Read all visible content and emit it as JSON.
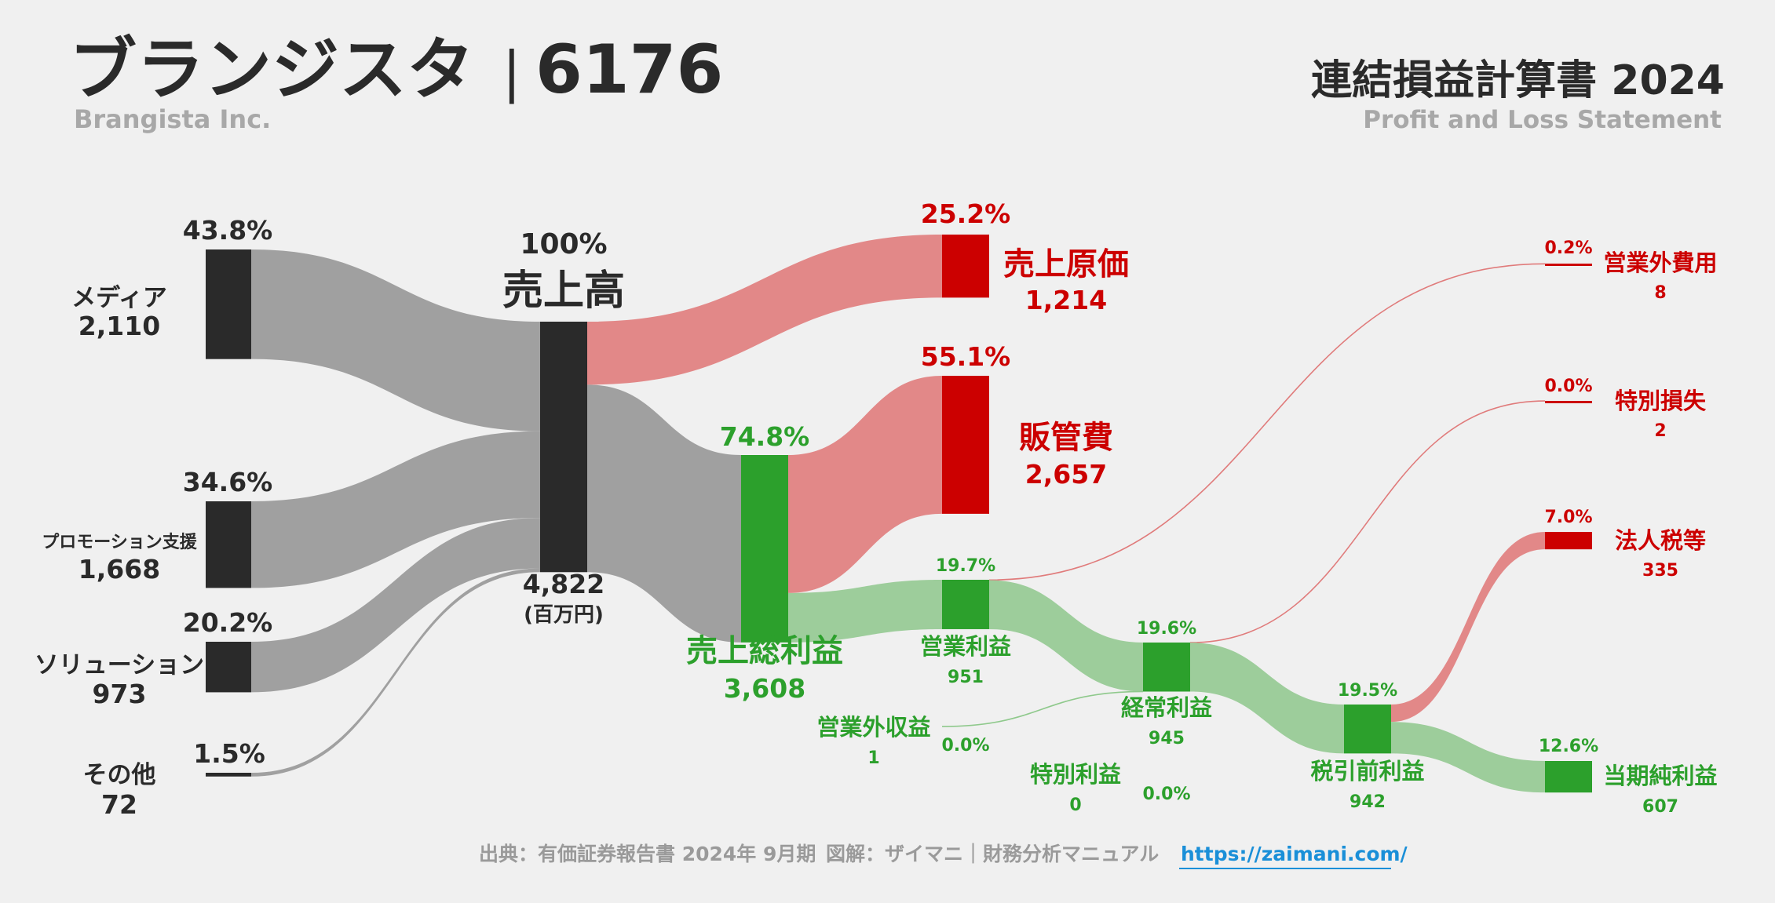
{
  "header": {
    "company": "ブランジスタ",
    "separator": "|",
    "code": "6176",
    "company_en": "Brangista Inc.",
    "statement": "連結損益計算書 2024",
    "statement_en": "Profit and Loss Statement"
  },
  "footer": {
    "source": "出典：有価証券報告書 2024年 9月期",
    "credit": "図解：ザイマニ｜財務分析マニュアル",
    "url": "https://zaimani.com/"
  },
  "colors": {
    "neutral_node": "#2a2a2a",
    "neutral_flow": "#a0a0a0",
    "cost_node": "#cc0000",
    "cost_flow": "#e28888",
    "profit_node": "#2ca02c",
    "profit_flow": "#9dcd9b",
    "background": "#f0f0f0"
  },
  "chart_data": {
    "type": "sankey",
    "unit": "(百万円)",
    "nodes": [
      {
        "id": "media",
        "label": "メディア",
        "value": "2,110",
        "pct": "43.8%",
        "kind": "neutral"
      },
      {
        "id": "promo",
        "label": "プロモーション支援",
        "value": "1,668",
        "pct": "34.6%",
        "kind": "neutral"
      },
      {
        "id": "solution",
        "label": "ソリューション",
        "value": "973",
        "pct": "20.2%",
        "kind": "neutral"
      },
      {
        "id": "other",
        "label": "その他",
        "value": "72",
        "pct": "1.5%",
        "kind": "neutral"
      },
      {
        "id": "revenue",
        "label": "売上高",
        "value": "4,822",
        "pct": "100%",
        "kind": "neutral"
      },
      {
        "id": "cogs",
        "label": "売上原価",
        "value": "1,214",
        "pct": "25.2%",
        "kind": "cost"
      },
      {
        "id": "gross",
        "label": "売上総利益",
        "value": "3,608",
        "pct": "74.8%",
        "kind": "profit"
      },
      {
        "id": "sga",
        "label": "販管費",
        "value": "2,657",
        "pct": "55.1%",
        "kind": "cost"
      },
      {
        "id": "op",
        "label": "営業利益",
        "value": "951",
        "pct": "19.7%",
        "kind": "profit"
      },
      {
        "id": "nonop_inc",
        "label": "営業外収益",
        "value": "1",
        "pct": "0.0%",
        "kind": "profit"
      },
      {
        "id": "nonop_exp",
        "label": "営業外費用",
        "value": "8",
        "pct": "0.2%",
        "kind": "cost"
      },
      {
        "id": "ord",
        "label": "経常利益",
        "value": "945",
        "pct": "19.6%",
        "kind": "profit"
      },
      {
        "id": "ext_gain",
        "label": "特別利益",
        "value": "0",
        "pct": "0.0%",
        "kind": "profit"
      },
      {
        "id": "ext_loss",
        "label": "特別損失",
        "value": "2",
        "pct": "0.0%",
        "kind": "cost"
      },
      {
        "id": "pretax",
        "label": "税引前利益",
        "value": "942",
        "pct": "19.5%",
        "kind": "profit"
      },
      {
        "id": "tax",
        "label": "法人税等",
        "value": "335",
        "pct": "7.0%",
        "kind": "cost"
      },
      {
        "id": "net",
        "label": "当期純利益",
        "value": "607",
        "pct": "12.6%",
        "kind": "profit"
      }
    ],
    "links": [
      {
        "source": "media",
        "target": "revenue",
        "value": 2110
      },
      {
        "source": "promo",
        "target": "revenue",
        "value": 1668
      },
      {
        "source": "solution",
        "target": "revenue",
        "value": 973
      },
      {
        "source": "other",
        "target": "revenue",
        "value": 72
      },
      {
        "source": "revenue",
        "target": "cogs",
        "value": 1214
      },
      {
        "source": "revenue",
        "target": "gross",
        "value": 3608
      },
      {
        "source": "gross",
        "target": "sga",
        "value": 2657
      },
      {
        "source": "gross",
        "target": "op",
        "value": 951
      },
      {
        "source": "op",
        "target": "nonop_exp",
        "value": 8
      },
      {
        "source": "op",
        "target": "ord",
        "value": 943
      },
      {
        "source": "nonop_inc",
        "target": "ord",
        "value": 1
      },
      {
        "source": "ord",
        "target": "ext_loss",
        "value": 2
      },
      {
        "source": "ord",
        "target": "pretax",
        "value": 942
      },
      {
        "source": "pretax",
        "target": "tax",
        "value": 335
      },
      {
        "source": "pretax",
        "target": "net",
        "value": 607
      }
    ]
  }
}
